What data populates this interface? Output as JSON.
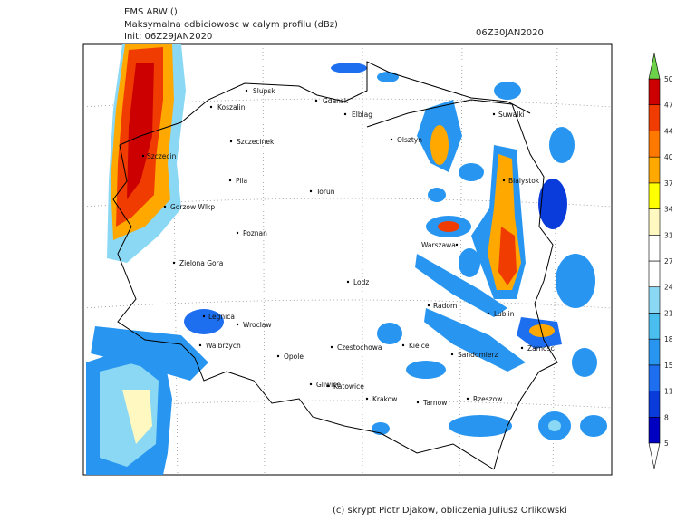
{
  "header": {
    "model": "EMS ARW ()",
    "field": "Maksymalna odbiciowosc w calym profilu (dBz)",
    "init": "Init: 06Z29JAN2020",
    "valid": "06Z30JAN2020"
  },
  "cities": [
    "Slupsk",
    "Koszalin",
    "Gdansk",
    "Elblag",
    "Suwalki",
    "Olsztyn",
    "Szczecinek",
    "Szczecin",
    "Bialystok",
    "Pila",
    "Torun",
    "Gorzow Wlkp",
    "Warszawa",
    "Poznan",
    "Zielona Gora",
    "Lodz",
    "Radom",
    "Lublin",
    "Legnica",
    "Wroclaw",
    "Walbrzych",
    "Czestochowa",
    "Kielce",
    "Zamosc",
    "Sandomierz",
    "Opole",
    "Gliwice",
    "Katowice",
    "Krakow",
    "Tarnow",
    "Rzeszow"
  ],
  "legend": {
    "levels": [
      5,
      8,
      11,
      15,
      18,
      21,
      24,
      27,
      31,
      34,
      37,
      40,
      44,
      47,
      50
    ],
    "colors": [
      "#0000c0",
      "#0a3cdc",
      "#1e6ef0",
      "#2896f0",
      "#4bbef0",
      "#8ad8f4",
      "#ffffff",
      "#ffffff",
      "#fff8c0",
      "#ffff00",
      "#ffa800",
      "#ff7800",
      "#f03c00",
      "#cc0000"
    ],
    "over_color": "#6cd24a",
    "under_color": "#ffffff"
  },
  "footer": "(c) skrypt Piotr Djakow, obliczenia Juliusz Orlikowski"
}
